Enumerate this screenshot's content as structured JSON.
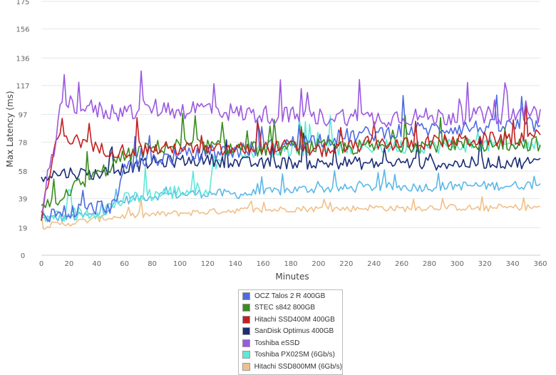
{
  "chart_data": {
    "type": "line",
    "xlabel": "Minutes",
    "ylabel": "Max Latency (ms)",
    "xlim": [
      0,
      360
    ],
    "ylim": [
      0,
      175
    ],
    "x_ticks": [
      0,
      20,
      40,
      60,
      80,
      100,
      120,
      140,
      160,
      180,
      200,
      220,
      240,
      260,
      280,
      300,
      320,
      340,
      360
    ],
    "y_ticks": [
      0,
      19,
      39,
      58,
      78,
      97,
      117,
      136,
      156,
      175
    ],
    "grid": "horizontal",
    "legend_position": "bottom-center",
    "series": [
      {
        "name": "OCZ Talos 2 R 400GB",
        "color": "#4d6be0",
        "x": [
          0,
          20,
          40,
          55,
          60,
          80,
          100,
          120,
          140,
          160,
          180,
          200,
          220,
          240,
          260,
          280,
          300,
          320,
          340,
          360
        ],
        "values": [
          28,
          30,
          33,
          35,
          62,
          66,
          68,
          70,
          72,
          74,
          77,
          80,
          82,
          84,
          86,
          87,
          88,
          88,
          89,
          90
        ]
      },
      {
        "name": "STEC s842 800GB",
        "color": "#3a8c1e",
        "x": [
          0,
          20,
          40,
          60,
          80,
          100,
          120,
          140,
          160,
          180,
          200,
          220,
          240,
          260,
          280,
          300,
          320,
          340,
          360
        ],
        "values": [
          30,
          45,
          55,
          68,
          74,
          76,
          75,
          74,
          73,
          74,
          75,
          74,
          75,
          76,
          76,
          77,
          76,
          77,
          77
        ]
      },
      {
        "name": "Hitachi SSD400M 400GB",
        "color": "#c41f1f",
        "x": [
          0,
          10,
          15,
          20,
          30,
          40,
          60,
          80,
          100,
          120,
          140,
          160,
          180,
          200,
          220,
          240,
          260,
          280,
          300,
          320,
          340,
          360
        ],
        "values": [
          25,
          75,
          90,
          80,
          78,
          73,
          72,
          73,
          74,
          72,
          73,
          74,
          75,
          72,
          74,
          78,
          76,
          78,
          79,
          80,
          80,
          82
        ]
      },
      {
        "name": "SanDisk Optimus 400GB",
        "color": "#1c2d75",
        "x": [
          0,
          20,
          40,
          60,
          80,
          100,
          120,
          140,
          160,
          180,
          200,
          220,
          240,
          260,
          280,
          300,
          320,
          340,
          360
        ],
        "values": [
          55,
          57,
          56,
          60,
          64,
          65,
          66,
          64,
          63,
          64,
          63,
          64,
          63,
          64,
          63,
          63,
          64,
          64,
          64
        ]
      },
      {
        "name": "Toshiba eSSD",
        "color": "#9b59e0",
        "x": [
          0,
          5,
          10,
          15,
          20,
          40,
          60,
          80,
          100,
          120,
          140,
          160,
          180,
          200,
          220,
          240,
          260,
          280,
          300,
          320,
          340,
          360
        ],
        "values": [
          30,
          60,
          70,
          110,
          105,
          100,
          98,
          102,
          100,
          102,
          98,
          97,
          96,
          95,
          96,
          94,
          96,
          95,
          96,
          96,
          97,
          98
        ]
      },
      {
        "name": "Toshiba PX02SM (6Gb/s)",
        "color": "#5ee8d8",
        "x": [
          0,
          20,
          40,
          60,
          80,
          100,
          120,
          130,
          140,
          160,
          180,
          200,
          220,
          240,
          260,
          280,
          300,
          320,
          340,
          360
        ],
        "values": [
          26,
          28,
          30,
          38,
          42,
          44,
          46,
          70,
          72,
          72,
          73,
          74,
          74,
          75,
          75,
          75,
          76,
          76,
          76,
          76
        ]
      },
      {
        "name": "Hitachi SSD800MM (6Gb/s)",
        "color": "#f0c088",
        "x": [
          0,
          20,
          40,
          60,
          80,
          100,
          120,
          140,
          160,
          180,
          200,
          220,
          240,
          260,
          280,
          300,
          320,
          340,
          360
        ],
        "values": [
          20,
          22,
          25,
          27,
          28,
          29,
          30,
          31,
          31,
          32,
          32,
          32,
          33,
          32,
          33,
          33,
          32,
          33,
          33
        ]
      },
      {
        "name": "",
        "color": "#5bb8e8",
        "x": [
          0,
          20,
          40,
          60,
          80,
          100,
          120,
          140,
          160,
          180,
          200,
          220,
          240,
          260,
          280,
          300,
          320,
          340,
          360
        ],
        "values": [
          25,
          26,
          28,
          38,
          41,
          42,
          43,
          42,
          43,
          45,
          46,
          46,
          47,
          47,
          47,
          48,
          48,
          48,
          49
        ]
      }
    ]
  }
}
